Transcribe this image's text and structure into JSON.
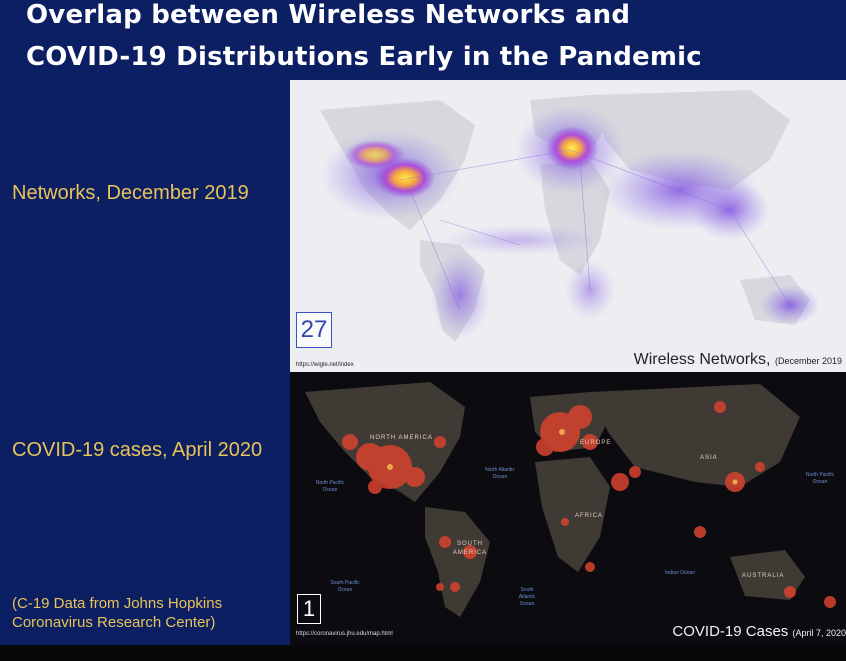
{
  "slide": {
    "title_line1": "Overlap between Wireless Networks and",
    "title_line2": "COVID-19 Distributions Early in the Pandemic",
    "label_networks": "Networks, December 2019",
    "label_covid": "COVID-19 cases, April 2020",
    "note_line1": "(C-19 Data from Johns Hopkins",
    "note_line2": "Coronavirus Research Center)",
    "background_color": "#0d1f63",
    "label_color": "#e8c35a"
  },
  "map_top": {
    "page_number": "27",
    "source": "https://wigle.net/index",
    "caption_main": "Wireless Networks,",
    "caption_small": "(December 2019"
  },
  "map_bottom": {
    "page_number": "1",
    "source": "https://coronavirus.jhu.edu/map.html",
    "caption_main": "COVID-19 Cases",
    "caption_small": "(April 7, 2020",
    "region_labels": {
      "north_america": "NORTH AMERICA",
      "south_america": "SOUTH AMERICA",
      "europe": "EUROPE",
      "asia": "ASIA",
      "africa": "AFRICA",
      "australia": "AUSTRALIA"
    },
    "ocean_labels": {
      "north_pacific": "North Pacific Ocean",
      "south_pacific": "South Pacific Ocean",
      "north_atlantic": "North Atlantic Ocean",
      "south_atlantic": "South Atlantic Ocean",
      "indian": "Indian Ocean",
      "north_pacific_east": "North Pacific Ocean"
    }
  }
}
